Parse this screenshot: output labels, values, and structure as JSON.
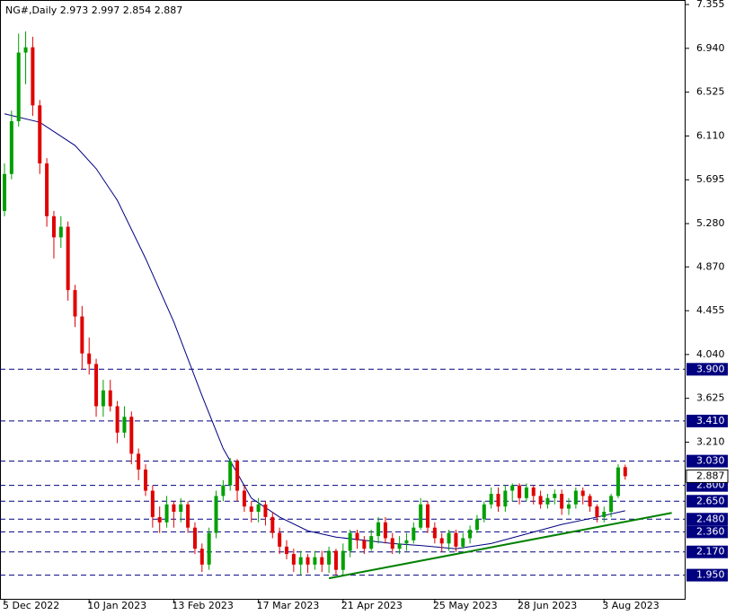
{
  "chart_data": {
    "type": "candlestick",
    "title": "NG#,Daily  2.973 2.997 2.854 2.887",
    "categories": [
      "5 Dec 2022",
      null,
      null,
      null,
      null,
      null,
      null,
      null,
      null,
      null,
      null,
      null,
      "10 Jan 2023",
      null,
      null,
      null,
      null,
      null,
      null,
      null,
      null,
      null,
      null,
      null,
      "13 Feb 2023",
      null,
      null,
      null,
      null,
      null,
      null,
      null,
      null,
      null,
      null,
      null,
      "17 Mar 2023",
      null,
      null,
      null,
      null,
      null,
      null,
      null,
      null,
      null,
      null,
      null,
      "21 Apr 2023",
      null,
      null,
      null,
      null,
      null,
      null,
      null,
      null,
      null,
      null,
      null,
      null,
      "25 May 2023",
      null,
      null,
      null,
      null,
      null,
      null,
      null,
      null,
      null,
      null,
      null,
      "28 Jun 2023",
      null,
      null,
      null,
      null,
      null,
      null,
      null,
      null,
      null,
      null,
      null,
      "3 Aug 2023",
      null,
      null,
      null
    ],
    "open": [
      5.4,
      5.75,
      6.25,
      6.9,
      6.95,
      6.4,
      5.85,
      5.35,
      5.15,
      5.25,
      4.65,
      4.4,
      4.05,
      3.95,
      3.55,
      3.7,
      3.55,
      3.3,
      3.45,
      3.1,
      2.95,
      2.75,
      2.5,
      2.45,
      2.62,
      2.55,
      2.62,
      2.4,
      2.2,
      2.05,
      2.35,
      2.7,
      2.8,
      3.03,
      2.75,
      2.6,
      2.55,
      2.62,
      2.5,
      2.35,
      2.22,
      2.15,
      2.05,
      2.12,
      2.05,
      2.12,
      2.05,
      2.18,
      2.0,
      2.18,
      2.35,
      2.28,
      2.2,
      2.32,
      2.45,
      2.3,
      2.2,
      2.25,
      2.28,
      2.4,
      2.62,
      2.4,
      2.3,
      2.25,
      2.35,
      2.22,
      2.3,
      2.38,
      2.48,
      2.62,
      2.72,
      2.6,
      2.75,
      2.8,
      2.68,
      2.78,
      2.7,
      2.62,
      2.68,
      2.72,
      2.58,
      2.62,
      2.75,
      2.7,
      2.6,
      2.5,
      2.55,
      2.7,
      2.973
    ],
    "high": [
      5.85,
      6.35,
      7.08,
      7.1,
      7.05,
      6.45,
      5.9,
      5.4,
      5.35,
      5.3,
      4.7,
      4.5,
      4.2,
      4.0,
      3.8,
      3.8,
      3.6,
      3.55,
      3.5,
      3.15,
      3.0,
      2.8,
      2.6,
      2.7,
      2.65,
      2.68,
      2.65,
      2.45,
      2.25,
      2.4,
      2.75,
      2.85,
      3.06,
      3.05,
      2.8,
      2.65,
      2.68,
      2.65,
      2.55,
      2.4,
      2.28,
      2.2,
      2.18,
      2.15,
      2.18,
      2.18,
      2.22,
      2.2,
      2.25,
      2.38,
      2.38,
      2.32,
      2.38,
      2.5,
      2.5,
      2.35,
      2.32,
      2.35,
      2.45,
      2.68,
      2.65,
      2.45,
      2.35,
      2.38,
      2.38,
      2.35,
      2.42,
      2.52,
      2.65,
      2.78,
      2.78,
      2.8,
      2.82,
      2.82,
      2.82,
      2.8,
      2.75,
      2.72,
      2.76,
      2.76,
      2.68,
      2.78,
      2.78,
      2.72,
      2.62,
      2.6,
      2.72,
      3.0,
      2.997
    ],
    "low": [
      5.35,
      5.7,
      6.2,
      6.6,
      6.3,
      5.75,
      5.25,
      4.95,
      5.05,
      4.55,
      4.3,
      3.9,
      3.85,
      3.45,
      3.45,
      3.5,
      3.2,
      3.25,
      3.0,
      2.85,
      2.7,
      2.4,
      2.35,
      2.4,
      2.4,
      2.45,
      2.35,
      2.15,
      1.98,
      2.0,
      2.3,
      2.65,
      2.75,
      2.65,
      2.55,
      2.45,
      2.45,
      2.42,
      2.3,
      2.15,
      2.1,
      1.98,
      1.95,
      1.97,
      2.0,
      1.98,
      1.97,
      1.95,
      1.95,
      2.12,
      2.2,
      2.15,
      2.18,
      2.25,
      2.25,
      2.15,
      2.15,
      2.18,
      2.25,
      2.38,
      2.35,
      2.25,
      2.17,
      2.18,
      2.17,
      2.2,
      2.25,
      2.35,
      2.45,
      2.58,
      2.55,
      2.55,
      2.65,
      2.62,
      2.65,
      2.62,
      2.58,
      2.58,
      2.62,
      2.52,
      2.52,
      2.58,
      2.62,
      2.55,
      2.45,
      2.45,
      2.5,
      2.68,
      2.854
    ],
    "close": [
      5.75,
      6.25,
      6.9,
      6.95,
      6.4,
      5.85,
      5.35,
      5.15,
      5.25,
      4.65,
      4.4,
      4.05,
      3.95,
      3.55,
      3.7,
      3.55,
      3.3,
      3.45,
      3.1,
      2.95,
      2.75,
      2.5,
      2.45,
      2.62,
      2.55,
      2.62,
      2.4,
      2.2,
      2.05,
      2.35,
      2.7,
      2.8,
      3.03,
      2.75,
      2.6,
      2.55,
      2.62,
      2.5,
      2.35,
      2.22,
      2.15,
      2.05,
      2.12,
      2.05,
      2.12,
      2.05,
      2.18,
      2.0,
      2.18,
      2.35,
      2.28,
      2.2,
      2.32,
      2.45,
      2.3,
      2.2,
      2.25,
      2.28,
      2.4,
      2.62,
      2.4,
      2.3,
      2.25,
      2.35,
      2.22,
      2.3,
      2.38,
      2.48,
      2.62,
      2.72,
      2.6,
      2.75,
      2.8,
      2.68,
      2.78,
      2.7,
      2.62,
      2.68,
      2.72,
      2.58,
      2.62,
      2.75,
      2.7,
      2.6,
      2.5,
      2.55,
      2.7,
      2.97,
      2.887
    ],
    "up_color": "#00a000",
    "down_color": "#e00000",
    "moving_average": {
      "color": "#000080",
      "x": [
        0,
        5,
        10,
        13,
        16,
        20,
        24,
        28,
        31,
        35,
        39,
        43,
        47,
        51,
        55,
        59,
        64,
        69,
        74,
        79,
        84,
        88
      ],
      "values": [
        6.32,
        6.24,
        6.02,
        5.8,
        5.5,
        4.95,
        4.35,
        3.65,
        3.15,
        2.68,
        2.5,
        2.37,
        2.31,
        2.28,
        2.25,
        2.23,
        2.2,
        2.25,
        2.34,
        2.43,
        2.5,
        2.56
      ]
    },
    "trendline": {
      "color": "#008000",
      "x": [
        46,
        94.6
      ],
      "values": [
        1.92,
        2.54
      ]
    },
    "ylim": [
      1.717,
      7.398
    ],
    "yticks": [
      7.355,
      {
        "value": 6.94,
        "label": "6.940"
      },
      6.525,
      {
        "value": 6.11,
        "label": "6.110"
      },
      5.695,
      {
        "value": 5.28,
        "label": "5.280"
      },
      {
        "value": 4.87,
        "label": "4.870"
      },
      4.455,
      {
        "value": 4.04,
        "label": "4.040"
      },
      3.625,
      {
        "value": 3.21,
        "label": "3.210"
      }
    ],
    "price_levels": [
      {
        "value": 3.9,
        "label": "3.900"
      },
      {
        "value": 3.41,
        "label": "3.410"
      },
      {
        "value": 3.03,
        "label": "3.030"
      },
      {
        "value": 2.8,
        "label": "2.800"
      },
      {
        "value": 2.65,
        "label": "2.650"
      },
      {
        "value": 2.48,
        "label": "2.480"
      },
      {
        "value": 2.36,
        "label": "2.360"
      },
      {
        "value": 2.17,
        "label": "2.170"
      },
      {
        "value": 1.95,
        "label": "1.950"
      }
    ],
    "level_color": "#000080",
    "last_price": 2.887
  }
}
